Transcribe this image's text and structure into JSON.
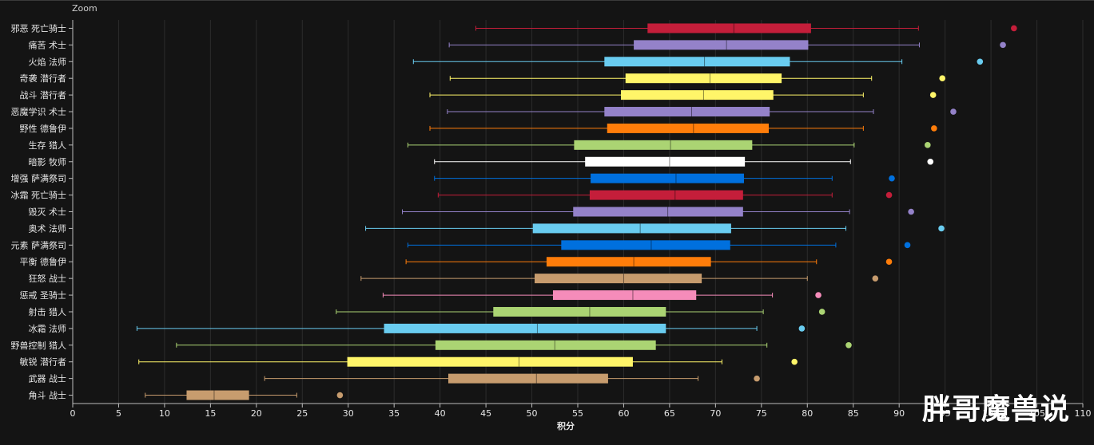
{
  "header": {
    "zoom_label": "Zoom"
  },
  "watermark": "胖哥魔兽说",
  "chart_data": {
    "type": "boxplot",
    "orientation": "horizontal",
    "xlabel": "积分",
    "xlim": [
      0,
      110
    ],
    "xticks": [
      0,
      5,
      10,
      15,
      20,
      25,
      30,
      35,
      40,
      45,
      50,
      55,
      60,
      65,
      70,
      75,
      80,
      85,
      90,
      95,
      100,
      105,
      110
    ],
    "xtick_labels": [
      "0",
      "5",
      "10",
      "15",
      "20",
      "25",
      "30",
      "35",
      "40",
      "45",
      "50",
      "55",
      "60",
      "65",
      "70",
      "75",
      "80",
      "85",
      "90",
      "95",
      "100",
      "105",
      "110"
    ],
    "series": [
      {
        "name": "邪恶 死亡骑士",
        "color": "#c41e3a",
        "min": 43.9,
        "q1": 62.6,
        "median": 72.0,
        "q3": 80.4,
        "max": 92.1,
        "outlier": 102.5
      },
      {
        "name": "痛苦 术士",
        "color": "#9482c9",
        "min": 41.0,
        "q1": 61.1,
        "median": 71.2,
        "q3": 80.1,
        "max": 92.2,
        "outlier": 101.3
      },
      {
        "name": "火焰 法师",
        "color": "#69ccf0",
        "min": 37.1,
        "q1": 57.9,
        "median": 68.8,
        "q3": 78.1,
        "max": 90.3,
        "outlier": 98.8
      },
      {
        "name": "奇袭 潜行者",
        "color": "#fff569",
        "min": 41.1,
        "q1": 60.2,
        "median": 69.4,
        "q3": 77.2,
        "max": 87.0,
        "outlier": 94.7
      },
      {
        "name": "战斗 潜行者",
        "color": "#fff569",
        "min": 38.9,
        "q1": 59.7,
        "median": 68.7,
        "q3": 76.3,
        "max": 86.1,
        "outlier": 93.7
      },
      {
        "name": "恶魔学识 术士",
        "color": "#9482c9",
        "min": 40.8,
        "q1": 57.9,
        "median": 67.4,
        "q3": 75.9,
        "max": 87.2,
        "outlier": 95.9
      },
      {
        "name": "野性 德鲁伊",
        "color": "#ff7d0a",
        "min": 38.9,
        "q1": 58.2,
        "median": 67.6,
        "q3": 75.8,
        "max": 86.1,
        "outlier": 93.8
      },
      {
        "name": "生存 猎人",
        "color": "#abd473",
        "min": 36.5,
        "q1": 54.6,
        "median": 65.1,
        "q3": 74.0,
        "max": 85.1,
        "outlier": 93.1
      },
      {
        "name": "暗影 牧师",
        "color": "#ffffff",
        "min": 39.4,
        "q1": 55.8,
        "median": 65.0,
        "q3": 73.2,
        "max": 84.7,
        "outlier": 93.4
      },
      {
        "name": "增强 萨满祭司",
        "color": "#0070de",
        "min": 39.4,
        "q1": 56.4,
        "median": 65.7,
        "q3": 73.1,
        "max": 82.7,
        "outlier": 89.2
      },
      {
        "name": "冰霜 死亡骑士",
        "color": "#c41e3a",
        "min": 39.8,
        "q1": 56.3,
        "median": 65.6,
        "q3": 73.0,
        "max": 82.7,
        "outlier": 88.9
      },
      {
        "name": "毁灭 术士",
        "color": "#9482c9",
        "min": 35.9,
        "q1": 54.5,
        "median": 64.8,
        "q3": 73.0,
        "max": 84.6,
        "outlier": 91.3
      },
      {
        "name": "奥术 法师",
        "color": "#69ccf0",
        "min": 31.9,
        "q1": 50.1,
        "median": 61.8,
        "q3": 71.7,
        "max": 84.2,
        "outlier": 94.6
      },
      {
        "name": "元素 萨满祭司",
        "color": "#0070de",
        "min": 36.5,
        "q1": 53.2,
        "median": 63.0,
        "q3": 71.6,
        "max": 83.1,
        "outlier": 90.9
      },
      {
        "name": "平衡 德鲁伊",
        "color": "#ff7d0a",
        "min": 36.3,
        "q1": 51.6,
        "median": 61.1,
        "q3": 69.5,
        "max": 81.0,
        "outlier": 88.9
      },
      {
        "name": "狂怒 战士",
        "color": "#c79c6e",
        "min": 31.4,
        "q1": 50.3,
        "median": 60.0,
        "q3": 68.5,
        "max": 80.0,
        "outlier": 87.4
      },
      {
        "name": "惩戒 圣骑士",
        "color": "#f58cba",
        "min": 33.8,
        "q1": 52.3,
        "median": 61.0,
        "q3": 67.9,
        "max": 76.2,
        "outlier": 81.2
      },
      {
        "name": "射击 猎人",
        "color": "#abd473",
        "min": 28.7,
        "q1": 45.8,
        "median": 56.3,
        "q3": 64.6,
        "max": 75.2,
        "outlier": 81.6
      },
      {
        "name": "冰霜 法师",
        "color": "#69ccf0",
        "min": 7.0,
        "q1": 33.9,
        "median": 50.6,
        "q3": 64.6,
        "max": 74.5,
        "outlier": 79.4
      },
      {
        "name": "野兽控制 猎人",
        "color": "#abd473",
        "min": 11.3,
        "q1": 39.5,
        "median": 52.5,
        "q3": 63.5,
        "max": 75.6,
        "outlier": 84.5
      },
      {
        "name": "敏锐 潜行者",
        "color": "#fff569",
        "min": 7.2,
        "q1": 29.9,
        "median": 48.6,
        "q3": 61.0,
        "max": 70.7,
        "outlier": 78.6
      },
      {
        "name": "武器 战士",
        "color": "#c79c6e",
        "min": 20.9,
        "q1": 40.9,
        "median": 50.5,
        "q3": 58.3,
        "max": 68.1,
        "outlier": 74.5
      },
      {
        "name": "角斗 战士",
        "color": "#c79c6e",
        "min": 7.9,
        "q1": 12.4,
        "median": 15.4,
        "q3": 19.2,
        "max": 24.4,
        "outlier": 29.1
      }
    ]
  }
}
